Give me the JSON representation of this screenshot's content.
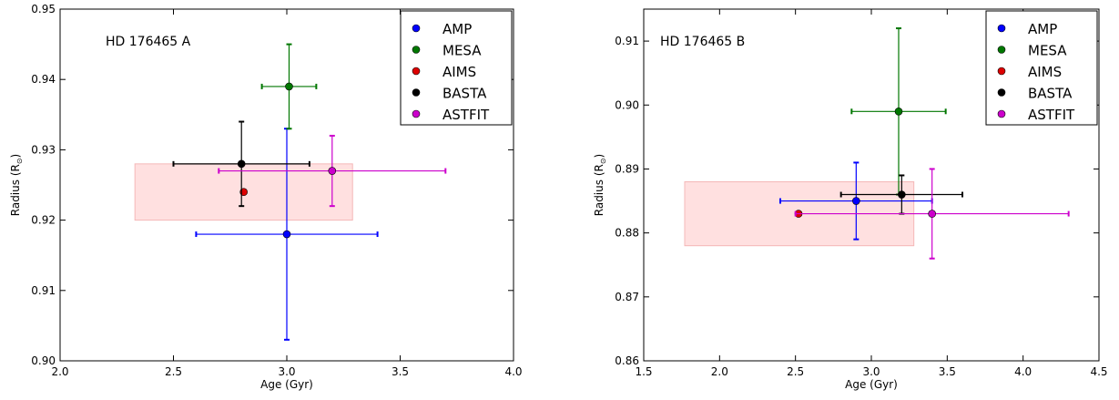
{
  "chart_data": [
    {
      "type": "scatter",
      "title": "",
      "annotation": "HD 176465 A",
      "xlabel": "Age (Gyr)",
      "ylabel": "Radius (R",
      "ylabel_sub": "⊙",
      "ylabel_close": ")",
      "xlim": [
        2.0,
        4.0
      ],
      "ylim": [
        0.9,
        0.95
      ],
      "xticks": [
        2.0,
        2.5,
        3.0,
        3.5,
        4.0
      ],
      "xtick_labels": [
        "2.0",
        "2.5",
        "3.0",
        "3.5",
        "4.0"
      ],
      "yticks": [
        0.9,
        0.91,
        0.92,
        0.93,
        0.94,
        0.95
      ],
      "ytick_labels": [
        "0.90",
        "0.91",
        "0.92",
        "0.93",
        "0.94",
        "0.95"
      ],
      "grid": false,
      "legend_position": "top-right",
      "shaded_region": {
        "x": [
          2.33,
          3.29
        ],
        "y": [
          0.92,
          0.928
        ],
        "color": "#ffcccc"
      },
      "series": [
        {
          "name": "AMP",
          "color": "#0000ff",
          "x": 3.0,
          "y": 0.918,
          "xerr": 0.4,
          "yerr": 0.015
        },
        {
          "name": "MESA",
          "color": "#007700",
          "x": 3.01,
          "y": 0.939,
          "xerr": 0.12,
          "yerr": 0.006
        },
        {
          "name": "AIMS",
          "color": "#dd0000",
          "x": 2.81,
          "y": 0.924,
          "xerr": 0,
          "yerr": 0
        },
        {
          "name": "BASTA",
          "color": "#000000",
          "x": 2.8,
          "y": 0.928,
          "xerr": 0.3,
          "yerr": 0.006
        },
        {
          "name": "ASTFIT",
          "color": "#cc00cc",
          "x": 3.2,
          "y": 0.927,
          "xerr": 0.5,
          "yerr": 0.005
        }
      ]
    },
    {
      "type": "scatter",
      "title": "",
      "annotation": "HD 176465 B",
      "xlabel": "Age (Gyr)",
      "ylabel": "Radius (R",
      "ylabel_sub": "⊙",
      "ylabel_close": ")",
      "xlim": [
        1.5,
        4.5
      ],
      "ylim": [
        0.86,
        0.915
      ],
      "xticks": [
        1.5,
        2.0,
        2.5,
        3.0,
        3.5,
        4.0,
        4.5
      ],
      "xtick_labels": [
        "1.5",
        "2.0",
        "2.5",
        "3.0",
        "3.5",
        "4.0",
        "4.5"
      ],
      "yticks": [
        0.86,
        0.87,
        0.88,
        0.89,
        0.9,
        0.91
      ],
      "ytick_labels": [
        "0.86",
        "0.87",
        "0.88",
        "0.89",
        "0.90",
        "0.91"
      ],
      "grid": false,
      "legend_position": "top-right",
      "shaded_region": {
        "x": [
          1.77,
          3.28
        ],
        "y": [
          0.878,
          0.888
        ],
        "color": "#ffcccc"
      },
      "series": [
        {
          "name": "AMP",
          "color": "#0000ff",
          "x": 2.9,
          "y": 0.885,
          "xerr": 0.5,
          "yerr": 0.006
        },
        {
          "name": "MESA",
          "color": "#007700",
          "x": 3.18,
          "y": 0.899,
          "xerr": 0.31,
          "yerr": 0.013
        },
        {
          "name": "AIMS",
          "color": "#dd0000",
          "x": 2.52,
          "y": 0.883,
          "xerr": 0,
          "yerr": 0
        },
        {
          "name": "BASTA",
          "color": "#000000",
          "x": 3.2,
          "y": 0.886,
          "xerr": 0.4,
          "yerr": 0.003
        },
        {
          "name": "ASTFIT",
          "color": "#cc00cc",
          "x": 3.4,
          "y": 0.883,
          "xerr": 0.9,
          "yerr": 0.007
        }
      ]
    }
  ]
}
